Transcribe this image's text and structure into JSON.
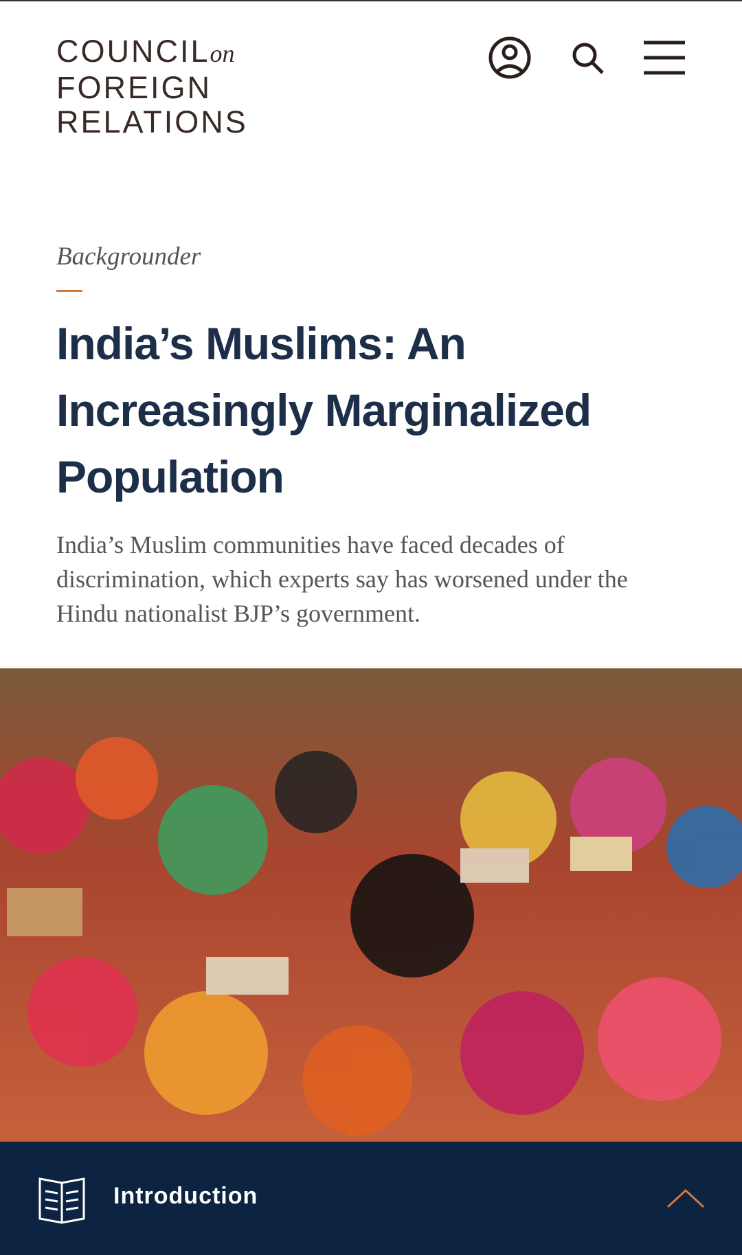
{
  "header": {
    "logo": {
      "line1": "COUNCIL",
      "on": "on",
      "line2": "FOREIGN",
      "line3": "RELATIONS"
    }
  },
  "article": {
    "label": "Backgrounder",
    "title": "India’s Muslims: An Increasingly Marginalized Population",
    "summary": "India’s Muslim communities have faced decades of discrimination, which experts say has worsened under the Hindu nationalist BJP’s government."
  },
  "nav": {
    "section": "Introduction"
  }
}
